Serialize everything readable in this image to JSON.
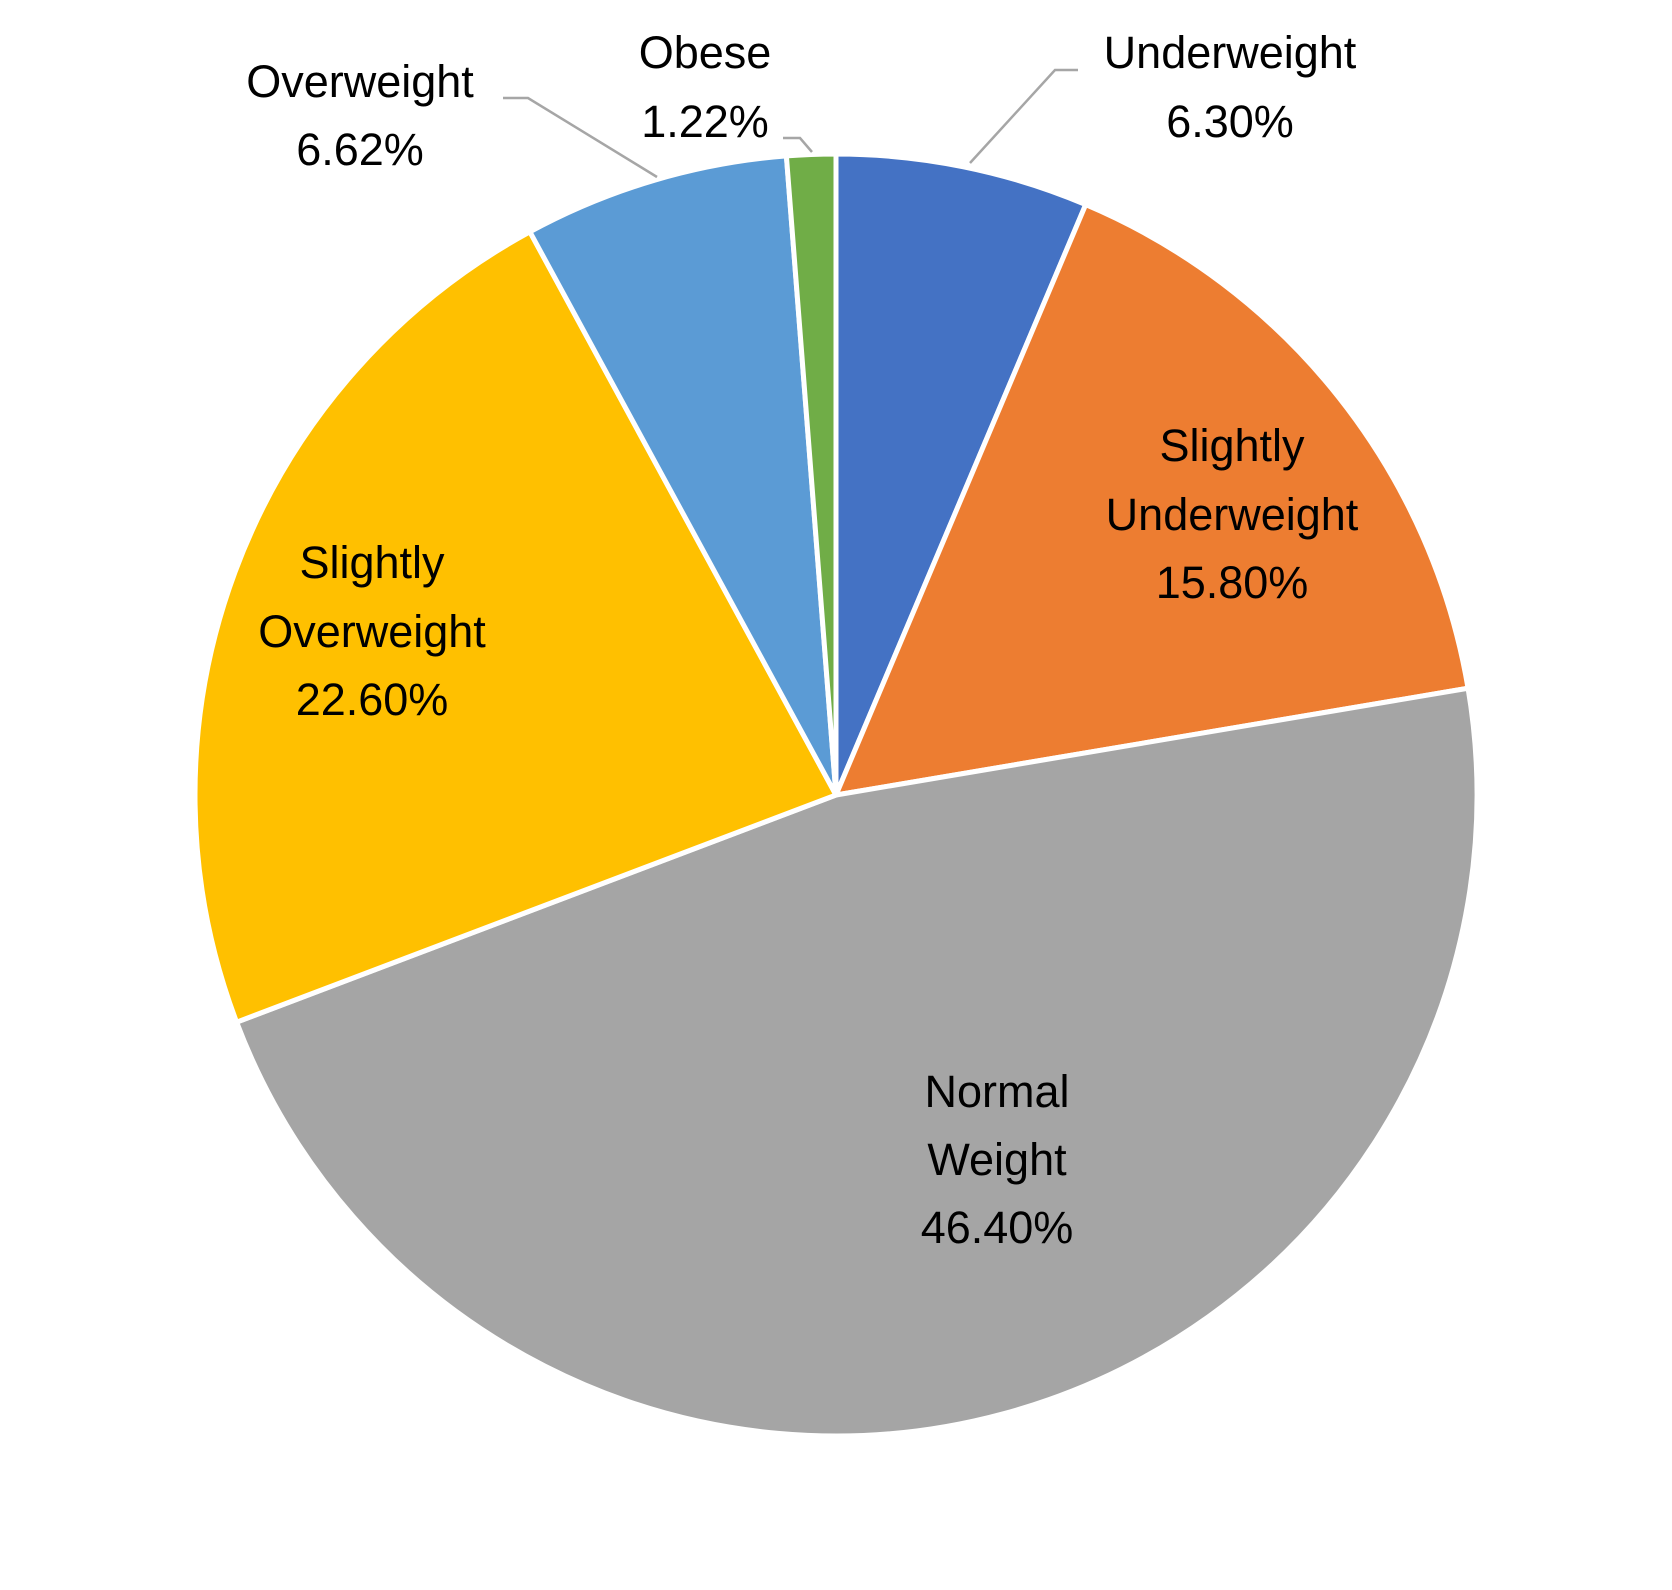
{
  "chart_data": {
    "type": "pie",
    "title": "",
    "categories": [
      "Underweight",
      "Slightly Underweight",
      "Normal Weight",
      "Slightly Overweight",
      "Overweight",
      "Obese"
    ],
    "values": [
      6.3,
      15.8,
      46.4,
      22.6,
      6.62,
      1.22
    ],
    "value_labels": [
      "6.30%",
      "15.80%",
      "46.40%",
      "22.60%",
      "6.62%",
      "1.22%"
    ],
    "colors": [
      "#4472C4",
      "#ED7D31",
      "#A5A5A5",
      "#FFC000",
      "#5B9BD5",
      "#70AD47"
    ],
    "start_angle_deg": 0,
    "direction": "clockwise",
    "legend": "none",
    "data_labels": "category name and percentage"
  },
  "labels": {
    "underweight": {
      "name": "Underweight",
      "value": "6.30%"
    },
    "slightly_underweight": {
      "name1": "Slightly",
      "name2": "Underweight",
      "value": "15.80%"
    },
    "normal_weight": {
      "name1": "Normal",
      "name2": "Weight",
      "value": "46.40%"
    },
    "slightly_overweight": {
      "name1": "Slightly",
      "name2": "Overweight",
      "value": "22.60%"
    },
    "overweight": {
      "name": "Overweight",
      "value": "6.62%"
    },
    "obese": {
      "name": "Obese",
      "value": "1.22%"
    }
  }
}
